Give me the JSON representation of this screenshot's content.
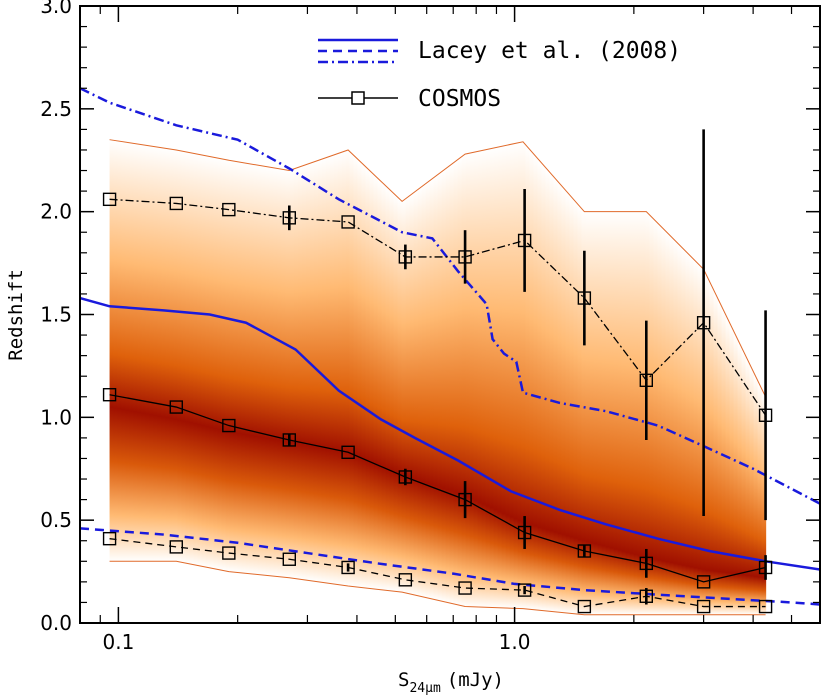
{
  "chart_data": {
    "type": "line",
    "xlabel": "S24μm (mJy)",
    "xlabel_main": "S",
    "xlabel_sub": "24μm",
    "xlabel_unit": "(mJy)",
    "ylabel": "Redshift",
    "x_scale": "log",
    "xlim": [
      0.08,
      5.9
    ],
    "ylim": [
      0.0,
      3.0
    ],
    "x_tick_labels": [
      "0.1",
      "1.0"
    ],
    "y_tick_labels": [
      "0.0",
      "0.5",
      "1.0",
      "1.5",
      "2.0",
      "2.5",
      "3.0"
    ],
    "grid": false,
    "legend_position": "top-right",
    "legend": [
      {
        "label": "Lacey et al. (2008)",
        "style": "blue solid / dashed / dash-dot"
      },
      {
        "label": "COSMOS",
        "style": "black line with open squares"
      }
    ],
    "colors": {
      "model": "#1a1adc",
      "observed": "#000000",
      "band_edge": "#e06a2a",
      "band_core": "#a01000",
      "band_mid": "#ff8a10"
    },
    "band": {
      "x": [
        0.095,
        0.14,
        0.19,
        0.27,
        0.38,
        0.52,
        0.75,
        1.05,
        1.5,
        2.15,
        3.0,
        4.3
      ],
      "upper": [
        2.35,
        2.3,
        2.25,
        2.2,
        2.3,
        2.05,
        2.28,
        2.34,
        2.0,
        2.0,
        1.72,
        1.1
      ],
      "lower": [
        0.3,
        0.3,
        0.25,
        0.22,
        0.18,
        0.15,
        0.08,
        0.07,
        0.04,
        0.04,
        0.04,
        0.04
      ],
      "core": [
        1.05,
        0.99,
        0.93,
        0.88,
        0.83,
        0.72,
        0.62,
        0.49,
        0.4,
        0.32,
        0.26,
        0.22
      ]
    },
    "series": [
      {
        "name": "Lacey et al. (2008)",
        "role": "median",
        "style": "solid",
        "x": [
          0.08,
          0.095,
          0.13,
          0.17,
          0.21,
          0.28,
          0.36,
          0.46,
          0.56,
          0.72,
          0.98,
          1.3,
          1.7,
          2.3,
          3.1,
          4.3,
          5.9
        ],
        "y": [
          1.58,
          1.54,
          1.52,
          1.5,
          1.46,
          1.33,
          1.13,
          0.99,
          0.9,
          0.79,
          0.64,
          0.55,
          0.48,
          0.41,
          0.35,
          0.3,
          0.26
        ]
      },
      {
        "name": "Lacey et al. (2008)",
        "role": "lower",
        "style": "dashed",
        "x": [
          0.08,
          0.13,
          0.2,
          0.3,
          0.45,
          0.7,
          1.0,
          1.5,
          2.2,
          3.3,
          5.0,
          5.9
        ],
        "y": [
          0.46,
          0.43,
          0.39,
          0.34,
          0.29,
          0.24,
          0.19,
          0.16,
          0.14,
          0.12,
          0.1,
          0.09
        ]
      },
      {
        "name": "Lacey et al. (2008)",
        "role": "upper",
        "style": "dash-dot",
        "x": [
          0.08,
          0.095,
          0.14,
          0.2,
          0.27,
          0.36,
          0.52,
          0.62,
          0.72,
          0.85,
          0.88,
          0.94,
          1.01,
          1.05,
          1.3,
          1.7,
          2.3,
          3.0,
          4.0,
          5.9
        ],
        "y": [
          2.6,
          2.53,
          2.42,
          2.35,
          2.21,
          2.06,
          1.9,
          1.87,
          1.71,
          1.55,
          1.38,
          1.31,
          1.27,
          1.12,
          1.07,
          1.03,
          0.96,
          0.86,
          0.75,
          0.58
        ]
      },
      {
        "name": "COSMOS",
        "role": "median",
        "style": "solid",
        "markers": "open-square",
        "x": [
          0.095,
          0.14,
          0.19,
          0.27,
          0.38,
          0.53,
          0.75,
          1.06,
          1.5,
          2.15,
          3.0,
          4.3
        ],
        "y": [
          1.11,
          1.05,
          0.96,
          0.89,
          0.83,
          0.71,
          0.6,
          0.44,
          0.35,
          0.29,
          0.2,
          0.27
        ],
        "yerr": [
          0.0,
          0.0,
          0.0,
          0.03,
          0.0,
          0.04,
          0.09,
          0.08,
          0.03,
          0.07,
          0.0,
          0.06
        ]
      },
      {
        "name": "COSMOS",
        "role": "lower",
        "style": "dashed",
        "markers": "open-square",
        "x": [
          0.095,
          0.14,
          0.19,
          0.27,
          0.38,
          0.53,
          0.75,
          1.06,
          1.5,
          2.15,
          3.0,
          4.3
        ],
        "y": [
          0.41,
          0.37,
          0.34,
          0.31,
          0.27,
          0.21,
          0.17,
          0.16,
          0.08,
          0.13,
          0.08,
          0.08
        ],
        "yerr": [
          0.0,
          0.0,
          0.0,
          0.0,
          0.02,
          0.0,
          0.0,
          0.02,
          0.0,
          0.04,
          0.0,
          0.0
        ]
      },
      {
        "name": "COSMOS",
        "role": "upper",
        "style": "dash-dot",
        "markers": "open-square",
        "x": [
          0.095,
          0.14,
          0.19,
          0.27,
          0.38,
          0.53,
          0.75,
          1.06,
          1.5,
          2.15,
          3.0,
          4.3
        ],
        "y": [
          2.06,
          2.04,
          2.01,
          1.97,
          1.95,
          1.78,
          1.78,
          1.86,
          1.58,
          1.18,
          1.46,
          1.01
        ],
        "yerr": [
          0.0,
          0.0,
          0.0,
          0.06,
          0.0,
          0.06,
          0.13,
          0.25,
          0.23,
          0.29,
          0.94,
          0.51
        ]
      }
    ]
  }
}
